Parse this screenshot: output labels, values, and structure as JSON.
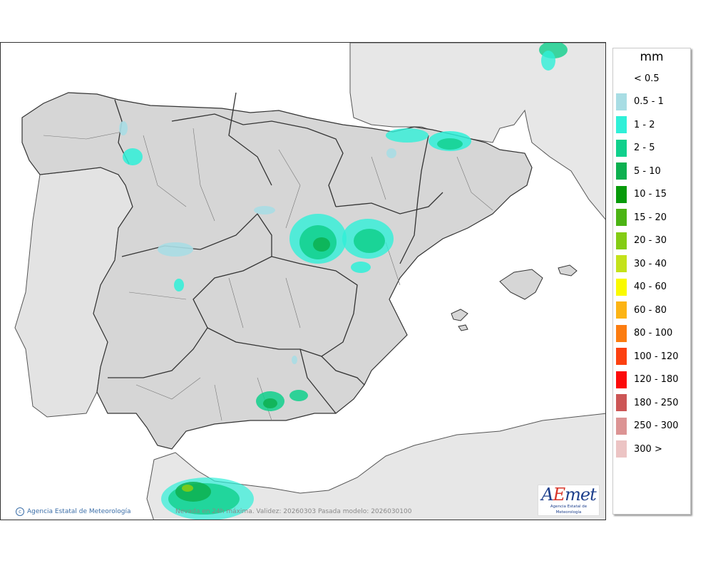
{
  "map": {
    "caption": "Nevada en 24h máxima. Validez: 20260303 Pasada modelo: 2026030100",
    "credit": "Agencia Estatal de Meteorología",
    "logo": {
      "main_a": "A",
      "main_e": "E",
      "main_rest": "met",
      "sub": "Agencia Estatal de Meteorología"
    }
  },
  "legend": {
    "unit": "mm",
    "items": [
      {
        "label": "< 0.5",
        "color": "#ffffff"
      },
      {
        "label": "0.5 - 1",
        "color": "#a8dde4"
      },
      {
        "label": "1 - 2",
        "color": "#2ff0d8"
      },
      {
        "label": "2 - 5",
        "color": "#10d08c"
      },
      {
        "label": "5 - 10",
        "color": "#0db050"
      },
      {
        "label": "10 - 15",
        "color": "#079a0a"
      },
      {
        "label": "15 - 20",
        "color": "#4cb414"
      },
      {
        "label": "20 - 30",
        "color": "#84cc14"
      },
      {
        "label": "30 - 40",
        "color": "#c4e21a"
      },
      {
        "label": "40 - 60",
        "color": "#fafa00"
      },
      {
        "label": "60 - 80",
        "color": "#fcb414"
      },
      {
        "label": "80 - 100",
        "color": "#fc7c10"
      },
      {
        "label": "100 - 120",
        "color": "#fc4010"
      },
      {
        "label": "120 - 180",
        "color": "#fc0a0a"
      },
      {
        "label": "180 - 250",
        "color": "#cc5656"
      },
      {
        "label": "250 - 300",
        "color": "#dc9494"
      },
      {
        "label": "300 >",
        "color": "#ecc4c4"
      }
    ]
  }
}
